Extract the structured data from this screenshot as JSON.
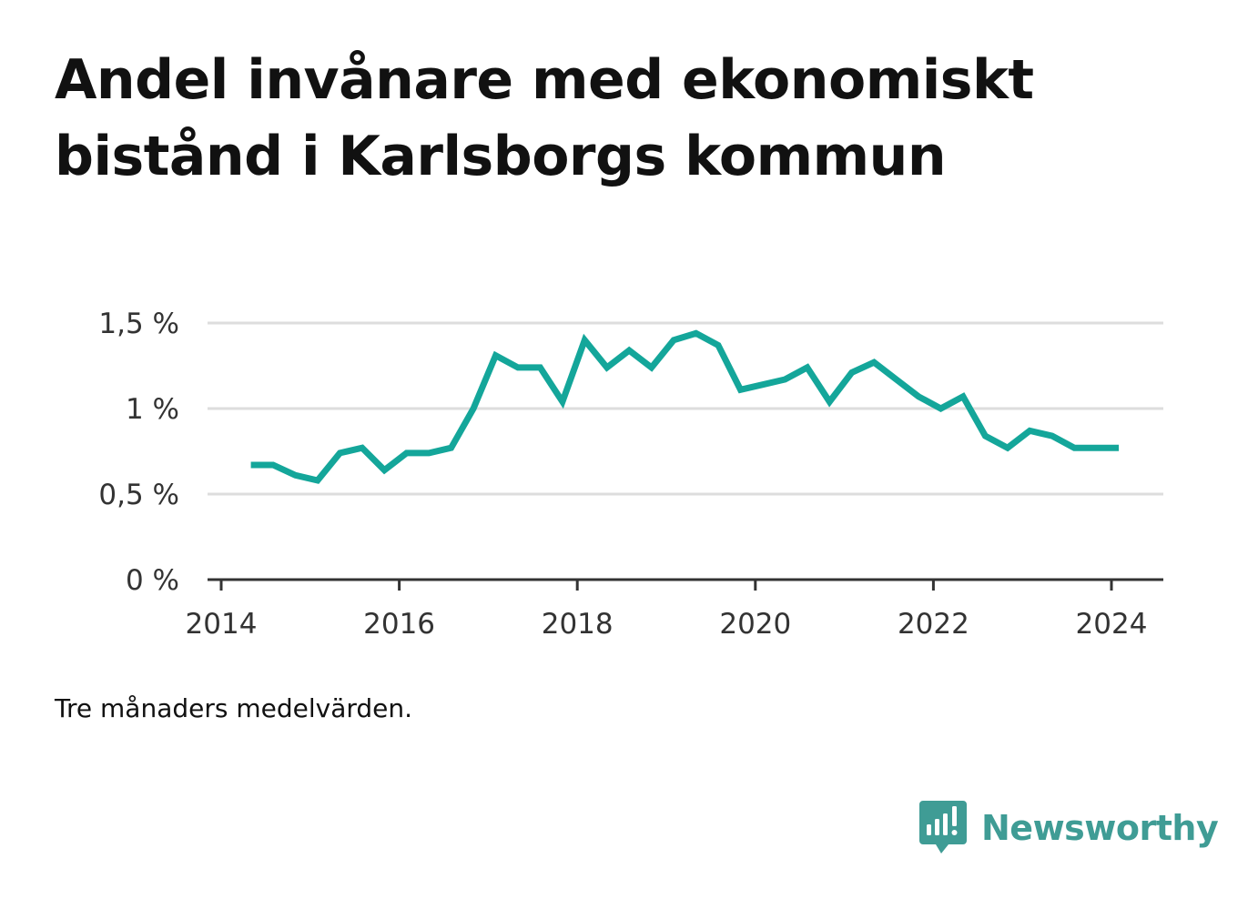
{
  "header": {
    "title": "Andel invånare med ekonomiskt bistånd i Karlsborgs kommun"
  },
  "footer": {
    "note": "Tre månaders medelvärden.",
    "brand": "Newsworthy"
  },
  "colors": {
    "line": "#14a69a",
    "grid": "#dddddd",
    "axis": "#333333",
    "brand": "#3f9c95"
  },
  "chart_data": {
    "type": "line",
    "title": "Andel invånare med ekonomiskt bistånd i Karlsborgs kommun",
    "xlabel": "",
    "ylabel": "",
    "xlim": [
      2014,
      2024.5
    ],
    "ylim": [
      0,
      1.5
    ],
    "x_ticks": [
      {
        "value": 2014,
        "label": "2014"
      },
      {
        "value": 2016,
        "label": "2016"
      },
      {
        "value": 2018,
        "label": "2018"
      },
      {
        "value": 2020,
        "label": "2020"
      },
      {
        "value": 2022,
        "label": "2022"
      },
      {
        "value": 2024,
        "label": "2024"
      }
    ],
    "y_ticks": [
      {
        "value": 0,
        "label": "0 %"
      },
      {
        "value": 0.5,
        "label": "0,5 %"
      },
      {
        "value": 1,
        "label": "1 %"
      },
      {
        "value": 1.5,
        "label": "1,5 %"
      }
    ],
    "grid": true,
    "series": [
      {
        "x": [
          "2014-05",
          "2014-08",
          "2014-11",
          "2015-02",
          "2015-05",
          "2015-08",
          "2015-11",
          "2016-02",
          "2016-05",
          "2016-08",
          "2016-11",
          "2017-02",
          "2017-05",
          "2017-08",
          "2017-11",
          "2018-02",
          "2018-05",
          "2018-08",
          "2018-11",
          "2019-02",
          "2019-05",
          "2019-08",
          "2019-11",
          "2020-02",
          "2020-05",
          "2020-08",
          "2020-11",
          "2021-02",
          "2021-05",
          "2021-08",
          "2021-11",
          "2022-02",
          "2022-05",
          "2022-08",
          "2022-11",
          "2023-02",
          "2023-05",
          "2023-08",
          "2023-11",
          "2024-02"
        ],
        "values": [
          0.67,
          0.67,
          0.61,
          0.58,
          0.74,
          0.77,
          0.64,
          0.74,
          0.74,
          0.77,
          1.0,
          1.31,
          1.24,
          1.24,
          1.04,
          1.4,
          1.24,
          1.34,
          1.24,
          1.4,
          1.44,
          1.37,
          1.11,
          1.14,
          1.17,
          1.24,
          1.04,
          1.21,
          1.27,
          1.17,
          1.07,
          1.0,
          1.07,
          0.84,
          0.77,
          0.87,
          0.84,
          0.77,
          0.77,
          0.77
        ]
      }
    ]
  }
}
